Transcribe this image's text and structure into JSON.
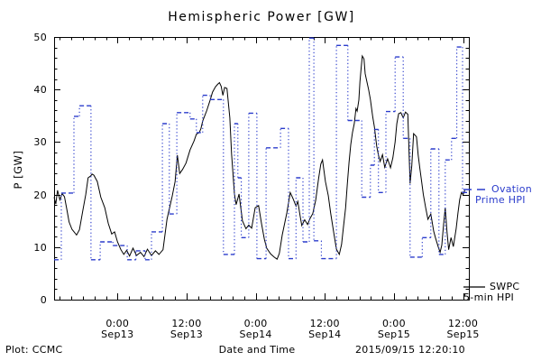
{
  "title": "Hemispheric Power [GW]",
  "colors": {
    "ovation_blue": "#2b3ccc",
    "swpc_black": "#000000",
    "background": "#ffffff"
  },
  "y_axis": {
    "title": "P [GW]",
    "min": 0,
    "max": 50,
    "major_ticks": [
      0,
      10,
      20,
      30,
      40,
      50
    ],
    "minor_step": 2
  },
  "x_axis": {
    "title": "Date and Time",
    "domain_hours": [
      13,
      85
    ],
    "minor_step_hours": 2,
    "major_ticks": [
      {
        "hour": 24,
        "time": "0:00",
        "date": "Sep13"
      },
      {
        "hour": 36,
        "time": "12:00",
        "date": "Sep13"
      },
      {
        "hour": 48,
        "time": "0:00",
        "date": "Sep14"
      },
      {
        "hour": 60,
        "time": "12:00",
        "date": "Sep14"
      },
      {
        "hour": 72,
        "time": "0:00",
        "date": "Sep15"
      },
      {
        "hour": 84,
        "time": "12:00",
        "date": "Sep15"
      }
    ]
  },
  "legend": {
    "ovation": {
      "line1": "Ovation",
      "line2": "Prime HPI"
    },
    "swpc": {
      "line1": "SWPC",
      "line2": "5-min HPI"
    }
  },
  "footer": {
    "plot_credit": "Plot: CCMC",
    "timestamp": "2015/09/15 12:20:10"
  },
  "chart_data": {
    "type": "line",
    "title": "Hemispheric Power [GW]",
    "xlabel": "Date and Time",
    "ylabel": "P [GW]",
    "ylim": [
      0,
      50
    ],
    "grid": false,
    "legend_position": "right",
    "x_unit": "hours since 2015-09-12 00:00 UT",
    "x_range_hours": [
      13,
      85
    ],
    "series": [
      {
        "name": "SWPC 5-min HPI",
        "color": "#000000",
        "line_style": "solid",
        "points": [
          [
            13.0,
            19.5
          ],
          [
            13.3,
            18.2
          ],
          [
            13.6,
            20.8
          ],
          [
            14.0,
            19.0
          ],
          [
            14.4,
            20.2
          ],
          [
            14.8,
            19.6
          ],
          [
            15.2,
            17.2
          ],
          [
            15.6,
            14.8
          ],
          [
            16.1,
            13.4
          ],
          [
            16.9,
            12.3
          ],
          [
            17.4,
            13.3
          ],
          [
            18.0,
            17.0
          ],
          [
            18.5,
            20.0
          ],
          [
            18.9,
            23.2
          ],
          [
            19.3,
            23.5
          ],
          [
            19.6,
            23.9
          ],
          [
            19.9,
            23.7
          ],
          [
            20.5,
            22.5
          ],
          [
            21.1,
            19.5
          ],
          [
            21.8,
            17.5
          ],
          [
            22.4,
            14.5
          ],
          [
            23.0,
            12.5
          ],
          [
            23.5,
            12.9
          ],
          [
            24.0,
            11.0
          ],
          [
            24.6,
            9.5
          ],
          [
            25.1,
            8.6
          ],
          [
            25.6,
            9.4
          ],
          [
            26.1,
            8.3
          ],
          [
            26.7,
            9.8
          ],
          [
            27.3,
            8.4
          ],
          [
            28.0,
            9.0
          ],
          [
            28.6,
            8.2
          ],
          [
            29.2,
            9.6
          ],
          [
            29.9,
            8.4
          ],
          [
            30.6,
            9.3
          ],
          [
            31.2,
            8.6
          ],
          [
            31.9,
            9.5
          ],
          [
            32.6,
            15.3
          ],
          [
            33.5,
            19.7
          ],
          [
            34.0,
            22.5
          ],
          [
            34.4,
            27.5
          ],
          [
            34.8,
            24.0
          ],
          [
            35.3,
            24.8
          ],
          [
            35.9,
            26.0
          ],
          [
            36.6,
            28.5
          ],
          [
            37.3,
            30.2
          ],
          [
            37.7,
            31.5
          ],
          [
            38.2,
            31.8
          ],
          [
            38.5,
            32.6
          ],
          [
            38.8,
            34.0
          ],
          [
            39.5,
            36.0
          ],
          [
            40.1,
            38.0
          ],
          [
            40.5,
            39.5
          ],
          [
            41.0,
            40.5
          ],
          [
            41.4,
            41.0
          ],
          [
            41.7,
            41.3
          ],
          [
            42.0,
            40.6
          ],
          [
            42.3,
            38.9
          ],
          [
            42.6,
            40.4
          ],
          [
            43.0,
            40.2
          ],
          [
            43.5,
            34.6
          ],
          [
            43.8,
            27.8
          ],
          [
            44.3,
            20.1
          ],
          [
            44.6,
            18.1
          ],
          [
            45.1,
            20.1
          ],
          [
            45.7,
            15.0
          ],
          [
            46.3,
            13.5
          ],
          [
            46.8,
            14.2
          ],
          [
            47.3,
            13.6
          ],
          [
            47.9,
            17.5
          ],
          [
            48.5,
            17.9
          ],
          [
            49.0,
            14.5
          ],
          [
            49.5,
            11.5
          ],
          [
            49.9,
            9.8
          ],
          [
            50.6,
            8.7
          ],
          [
            51.2,
            8.1
          ],
          [
            51.7,
            7.7
          ],
          [
            52.1,
            8.8
          ],
          [
            52.6,
            12.3
          ],
          [
            53.4,
            16.5
          ],
          [
            54.0,
            20.4
          ],
          [
            54.5,
            19.2
          ],
          [
            55.0,
            17.8
          ],
          [
            55.3,
            18.7
          ],
          [
            55.7,
            16.0
          ],
          [
            56.0,
            14.1
          ],
          [
            56.5,
            15.2
          ],
          [
            57.0,
            14.3
          ],
          [
            57.4,
            15.4
          ],
          [
            57.9,
            16.4
          ],
          [
            58.4,
            18.9
          ],
          [
            58.9,
            23.0
          ],
          [
            59.3,
            25.8
          ],
          [
            59.6,
            26.6
          ],
          [
            60.1,
            22.5
          ],
          [
            60.6,
            19.8
          ],
          [
            61.0,
            16.5
          ],
          [
            61.5,
            13.0
          ],
          [
            62.0,
            9.6
          ],
          [
            62.5,
            8.6
          ],
          [
            62.9,
            10.5
          ],
          [
            63.2,
            13.5
          ],
          [
            63.6,
            17.5
          ],
          [
            63.9,
            22.0
          ],
          [
            64.2,
            26.1
          ],
          [
            64.5,
            29.5
          ],
          [
            64.8,
            31.8
          ],
          [
            65.1,
            33.5
          ],
          [
            65.4,
            36.4
          ],
          [
            65.6,
            35.9
          ],
          [
            65.9,
            38.0
          ],
          [
            66.1,
            41.5
          ],
          [
            66.3,
            44.0
          ],
          [
            66.5,
            46.4
          ],
          [
            66.8,
            45.8
          ],
          [
            67.0,
            43.0
          ],
          [
            67.3,
            41.5
          ],
          [
            67.6,
            40.0
          ],
          [
            67.9,
            38.1
          ],
          [
            68.3,
            34.9
          ],
          [
            68.6,
            32.9
          ],
          [
            69.0,
            29.2
          ],
          [
            69.3,
            27.5
          ],
          [
            69.6,
            26.3
          ],
          [
            70.0,
            27.6
          ],
          [
            70.4,
            25.2
          ],
          [
            70.9,
            26.8
          ],
          [
            71.4,
            25.1
          ],
          [
            71.8,
            27.0
          ],
          [
            72.2,
            30.0
          ],
          [
            72.5,
            33.5
          ],
          [
            72.8,
            35.4
          ],
          [
            73.2,
            35.6
          ],
          [
            73.6,
            34.6
          ],
          [
            74.0,
            35.7
          ],
          [
            74.4,
            35.3
          ],
          [
            74.8,
            22.1
          ],
          [
            75.1,
            25.5
          ],
          [
            75.4,
            31.6
          ],
          [
            75.9,
            31.0
          ],
          [
            76.2,
            27.5
          ],
          [
            76.5,
            24.9
          ],
          [
            76.8,
            22.5
          ],
          [
            77.1,
            20.0
          ],
          [
            77.5,
            17.5
          ],
          [
            77.9,
            15.3
          ],
          [
            78.4,
            16.3
          ],
          [
            78.9,
            13.0
          ],
          [
            79.2,
            11.8
          ],
          [
            79.7,
            10.0
          ],
          [
            80.0,
            9.0
          ],
          [
            80.3,
            10.4
          ],
          [
            80.6,
            14.2
          ],
          [
            80.9,
            17.5
          ],
          [
            81.2,
            13.0
          ],
          [
            81.5,
            9.5
          ],
          [
            81.9,
            11.8
          ],
          [
            82.3,
            10.1
          ],
          [
            82.8,
            13.5
          ],
          [
            83.1,
            16.5
          ],
          [
            83.4,
            19.0
          ],
          [
            83.7,
            20.4
          ],
          [
            84.0,
            20.0
          ],
          [
            84.3,
            20.8
          ]
        ]
      },
      {
        "name": "Ovation Prime HPI",
        "color": "#2b3ccc",
        "line_style": "dotted-step",
        "end_hour": 84.7,
        "points": [
          [
            13.0,
            7.6
          ],
          [
            14.25,
            20.3
          ],
          [
            16.45,
            34.9
          ],
          [
            17.4,
            36.9
          ],
          [
            19.4,
            7.6
          ],
          [
            21.0,
            11.0
          ],
          [
            23.2,
            10.3
          ],
          [
            25.7,
            7.6
          ],
          [
            27.2,
            9.3
          ],
          [
            28.8,
            7.6
          ],
          [
            29.9,
            12.9
          ],
          [
            31.8,
            33.5
          ],
          [
            33.0,
            16.3
          ],
          [
            34.3,
            35.6
          ],
          [
            36.6,
            34.4
          ],
          [
            37.7,
            31.8
          ],
          [
            38.8,
            38.9
          ],
          [
            40.1,
            38.1
          ],
          [
            42.4,
            8.6
          ],
          [
            44.3,
            33.5
          ],
          [
            44.9,
            23.2
          ],
          [
            45.5,
            11.8
          ],
          [
            46.8,
            35.5
          ],
          [
            48.2,
            7.8
          ],
          [
            49.8,
            28.9
          ],
          [
            52.3,
            32.6
          ],
          [
            53.7,
            7.8
          ],
          [
            55.0,
            23.2
          ],
          [
            56.2,
            11.0
          ],
          [
            57.3,
            49.8
          ],
          [
            58.1,
            11.2
          ],
          [
            59.4,
            7.8
          ],
          [
            62.0,
            48.4
          ],
          [
            64.0,
            34.1
          ],
          [
            66.4,
            19.5
          ],
          [
            67.9,
            25.6
          ],
          [
            68.6,
            32.4
          ],
          [
            69.3,
            20.4
          ],
          [
            70.6,
            35.8
          ],
          [
            72.2,
            46.2
          ],
          [
            73.6,
            30.7
          ],
          [
            74.8,
            8.1
          ],
          [
            76.9,
            11.8
          ],
          [
            78.4,
            28.7
          ],
          [
            79.8,
            8.6
          ],
          [
            80.9,
            26.6
          ],
          [
            82.0,
            30.7
          ],
          [
            82.9,
            48.1
          ],
          [
            83.9,
            20.4
          ]
        ]
      }
    ]
  }
}
